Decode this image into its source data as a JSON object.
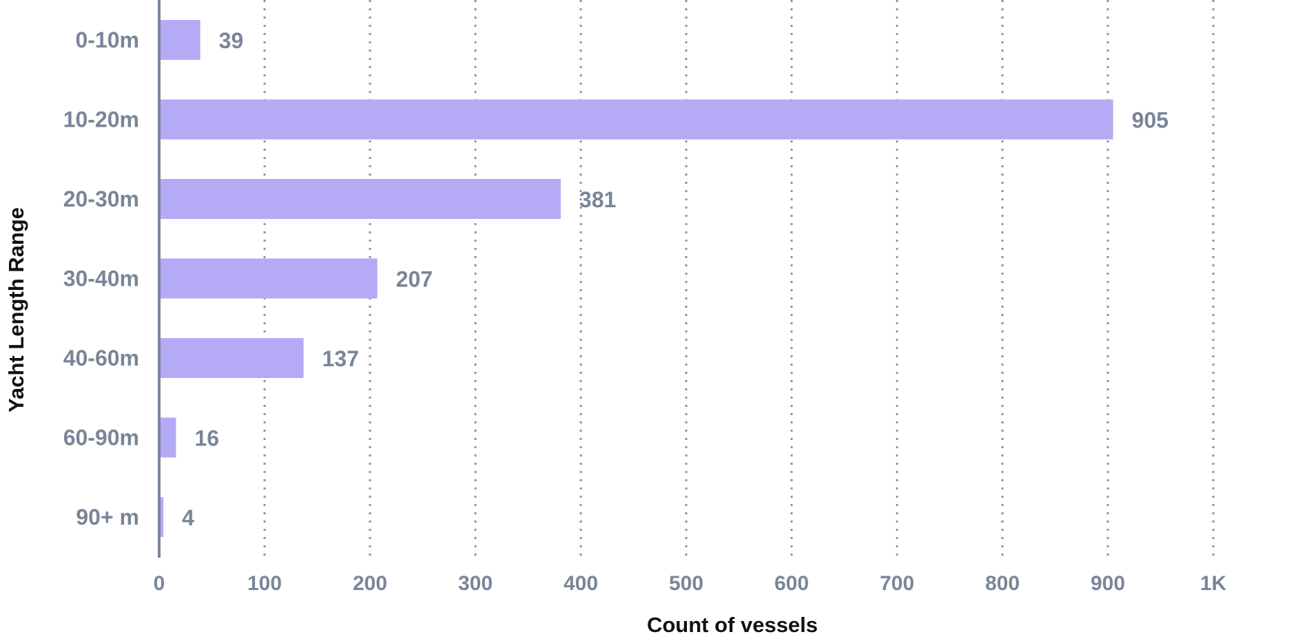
{
  "chart_data": {
    "type": "bar",
    "orientation": "horizontal",
    "title": "",
    "xlabel": "Count of vessels",
    "ylabel": "Yacht Length Range",
    "categories": [
      "0-10m",
      "10-20m",
      "20-30m",
      "30-40m",
      "40-60m",
      "60-90m",
      "90+ m"
    ],
    "values": [
      39,
      905,
      381,
      207,
      137,
      16,
      4
    ],
    "value_labels": [
      "39",
      "905",
      "381",
      "207",
      "137",
      "16",
      "4"
    ],
    "xlim": [
      0,
      1000
    ],
    "x_ticks": [
      0,
      100,
      200,
      300,
      400,
      500,
      600,
      700,
      800,
      900,
      1000
    ],
    "x_tick_labels": [
      "0",
      "100",
      "200",
      "300",
      "400",
      "500",
      "600",
      "700",
      "800",
      "900",
      "1K"
    ],
    "grid": "vertical dotted",
    "legend": "none",
    "colors": {
      "bar": "#b4aaf5",
      "grid": "#8a93a6",
      "axis": "#7a8599",
      "text": "#7a8599",
      "title": "#111111"
    }
  }
}
